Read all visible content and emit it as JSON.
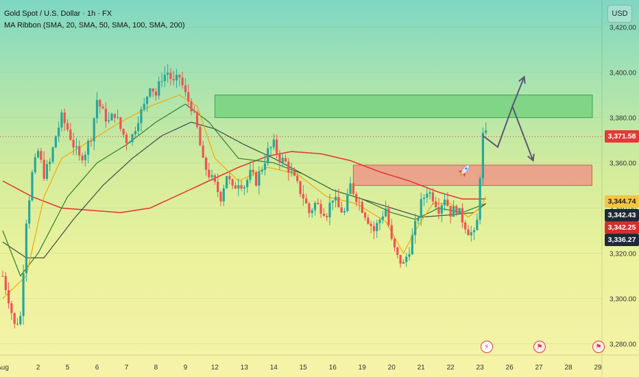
{
  "legend": {
    "symbol_line": "Gold Spot / U.S. Dollar · 1h · FX",
    "indicator_line": "MA Ribbon (SMA, 20, SMA, 50, SMA, 100, SMA, 200)"
  },
  "currency_button": "USD",
  "price_labels": [
    {
      "text": "3,371.58",
      "value": 3371.58,
      "bg": "#e53935",
      "fg": "#ffffff"
    },
    {
      "text": "3,344.74",
      "value": 3344.74,
      "bg": "#f4c542",
      "fg": "#222222"
    },
    {
      "text": "3,342.43",
      "value": 3342.43,
      "bg": "#1f2937",
      "fg": "#ffffff"
    },
    {
      "text": "3,342.25",
      "value": 3342.25,
      "bg": "#d32f2f",
      "fg": "#ffffff"
    },
    {
      "text": "3,336.27",
      "value": 3336.27,
      "bg": "#1f2937",
      "fg": "#ffffff"
    }
  ],
  "colors": {
    "up": "#26a69a",
    "down": "#ef5350",
    "sma20": "#f2a900",
    "sma50": "#2e7d32",
    "sma100": "#3b4a4a",
    "sma200": "#e53935",
    "resistance_zone": "#6fcf7a",
    "support_zone": "#f08c86",
    "projection": "#5a5670"
  },
  "icons": {
    "rocket": "rocket-icon",
    "events": [
      "flash-icon",
      "flag-event-icon",
      "flag-event-icon"
    ]
  },
  "chart_data": {
    "type": "candlestick",
    "title": "Gold Spot / U.S. Dollar · 1h · FX",
    "ylim": [
      3275,
      3432
    ],
    "yticks": [
      3280,
      3300,
      3320,
      3340,
      3360,
      3380,
      3400,
      3420
    ],
    "ytick_labels": [
      "3,280.00",
      "3,300.00",
      "3,320.00",
      "3,340.00",
      "3,360.00",
      "3,380.00",
      "3,400.00",
      "3,420.00"
    ],
    "xticks": [
      "Aug",
      "2",
      "5",
      "6",
      "7",
      "8",
      "9",
      "12",
      "13",
      "14",
      "15",
      "16",
      "19",
      "20",
      "21",
      "22",
      "23",
      "26",
      "27",
      "28",
      "29"
    ],
    "xtick_index": [
      0,
      12,
      22,
      32,
      42,
      52,
      62,
      72,
      82,
      92,
      102,
      112,
      122,
      132,
      142,
      152,
      162,
      172,
      182,
      192,
      202
    ],
    "candles_count": 165,
    "close_path": [
      [
        0,
        3310
      ],
      [
        2,
        3300
      ],
      [
        4,
        3288
      ],
      [
        6,
        3292
      ],
      [
        8,
        3335
      ],
      [
        10,
        3355
      ],
      [
        12,
        3365
      ],
      [
        14,
        3355
      ],
      [
        16,
        3360
      ],
      [
        18,
        3372
      ],
      [
        20,
        3380
      ],
      [
        22,
        3375
      ],
      [
        24,
        3368
      ],
      [
        26,
        3362
      ],
      [
        28,
        3365
      ],
      [
        30,
        3372
      ],
      [
        32,
        3388
      ],
      [
        34,
        3382
      ],
      [
        36,
        3378
      ],
      [
        38,
        3382
      ],
      [
        40,
        3375
      ],
      [
        42,
        3370
      ],
      [
        44,
        3372
      ],
      [
        46,
        3380
      ],
      [
        48,
        3385
      ],
      [
        50,
        3395
      ],
      [
        52,
        3390
      ],
      [
        54,
        3398
      ],
      [
        56,
        3400
      ],
      [
        58,
        3395
      ],
      [
        60,
        3398
      ],
      [
        62,
        3390
      ],
      [
        64,
        3385
      ],
      [
        66,
        3375
      ],
      [
        68,
        3360
      ],
      [
        70,
        3355
      ],
      [
        72,
        3350
      ],
      [
        74,
        3345
      ],
      [
        76,
        3355
      ],
      [
        78,
        3348
      ],
      [
        80,
        3352
      ],
      [
        82,
        3350
      ],
      [
        84,
        3355
      ],
      [
        86,
        3352
      ],
      [
        88,
        3358
      ],
      [
        90,
        3365
      ],
      [
        92,
        3368
      ],
      [
        94,
        3362
      ],
      [
        96,
        3360
      ],
      [
        98,
        3355
      ],
      [
        100,
        3350
      ],
      [
        102,
        3345
      ],
      [
        104,
        3338
      ],
      [
        106,
        3342
      ],
      [
        108,
        3340
      ],
      [
        110,
        3338
      ],
      [
        112,
        3345
      ],
      [
        114,
        3340
      ],
      [
        116,
        3338
      ],
      [
        118,
        3350
      ],
      [
        120,
        3345
      ],
      [
        122,
        3340
      ],
      [
        124,
        3335
      ],
      [
        126,
        3330
      ],
      [
        128,
        3335
      ],
      [
        130,
        3340
      ],
      [
        132,
        3325
      ],
      [
        134,
        3318
      ],
      [
        136,
        3315
      ],
      [
        138,
        3322
      ],
      [
        140,
        3332
      ],
      [
        142,
        3342
      ],
      [
        144,
        3348
      ],
      [
        146,
        3345
      ],
      [
        148,
        3340
      ],
      [
        150,
        3345
      ],
      [
        152,
        3338
      ],
      [
        154,
        3340
      ],
      [
        156,
        3335
      ],
      [
        158,
        3330
      ],
      [
        160,
        3328
      ],
      [
        161,
        3334
      ],
      [
        162,
        3355
      ],
      [
        163,
        3372
      ],
      [
        164,
        3372
      ]
    ],
    "sma_series": {
      "sma20": [
        [
          0,
          3300
        ],
        [
          8,
          3310
        ],
        [
          14,
          3345
        ],
        [
          20,
          3362
        ],
        [
          30,
          3370
        ],
        [
          40,
          3378
        ],
        [
          50,
          3385
        ],
        [
          60,
          3390
        ],
        [
          66,
          3385
        ],
        [
          72,
          3362
        ],
        [
          80,
          3352
        ],
        [
          90,
          3358
        ],
        [
          100,
          3355
        ],
        [
          110,
          3345
        ],
        [
          120,
          3342
        ],
        [
          130,
          3334
        ],
        [
          136,
          3320
        ],
        [
          140,
          3330
        ],
        [
          146,
          3342
        ],
        [
          152,
          3342
        ],
        [
          158,
          3336
        ],
        [
          162,
          3340
        ],
        [
          164,
          3345
        ]
      ],
      "sma50": [
        [
          0,
          3330
        ],
        [
          6,
          3310
        ],
        [
          12,
          3320
        ],
        [
          22,
          3345
        ],
        [
          32,
          3360
        ],
        [
          42,
          3368
        ],
        [
          52,
          3378
        ],
        [
          62,
          3386
        ],
        [
          70,
          3378
        ],
        [
          80,
          3362
        ],
        [
          92,
          3360
        ],
        [
          102,
          3355
        ],
        [
          112,
          3348
        ],
        [
          122,
          3344
        ],
        [
          132,
          3338
        ],
        [
          140,
          3335
        ],
        [
          148,
          3340
        ],
        [
          156,
          3338
        ],
        [
          164,
          3342
        ]
      ],
      "sma100": [
        [
          0,
          3325
        ],
        [
          8,
          3318
        ],
        [
          14,
          3318
        ],
        [
          24,
          3335
        ],
        [
          34,
          3350
        ],
        [
          44,
          3362
        ],
        [
          54,
          3372
        ],
        [
          64,
          3378
        ],
        [
          72,
          3375
        ],
        [
          82,
          3368
        ],
        [
          92,
          3362
        ],
        [
          102,
          3355
        ],
        [
          112,
          3348
        ],
        [
          122,
          3344
        ],
        [
          132,
          3340
        ],
        [
          142,
          3336
        ],
        [
          152,
          3337
        ],
        [
          160,
          3338
        ],
        [
          164,
          3342
        ]
      ],
      "sma200": [
        [
          0,
          3352
        ],
        [
          10,
          3345
        ],
        [
          20,
          3340
        ],
        [
          30,
          3339
        ],
        [
          40,
          3338
        ],
        [
          50,
          3340
        ],
        [
          60,
          3346
        ],
        [
          70,
          3352
        ],
        [
          80,
          3358
        ],
        [
          90,
          3363
        ],
        [
          98,
          3365
        ],
        [
          108,
          3364
        ],
        [
          118,
          3361
        ],
        [
          128,
          3356
        ],
        [
          138,
          3352
        ],
        [
          148,
          3347
        ],
        [
          156,
          3344
        ],
        [
          164,
          3344
        ]
      ]
    },
    "zones": [
      {
        "name": "resistance",
        "from_index": 72,
        "to_index": 210,
        "low": 3380,
        "high": 3390
      },
      {
        "name": "support",
        "from_index": 119,
        "to_index": 200,
        "low": 3350,
        "high": 3359
      }
    ],
    "projection_path": [
      [
        163,
        3372
      ],
      [
        168,
        3367
      ],
      [
        173,
        3385
      ],
      [
        180,
        3361
      ]
    ],
    "projection_alt": [
      [
        173,
        3385
      ],
      [
        177,
        3398
      ]
    ],
    "last_price": 3371.58
  }
}
